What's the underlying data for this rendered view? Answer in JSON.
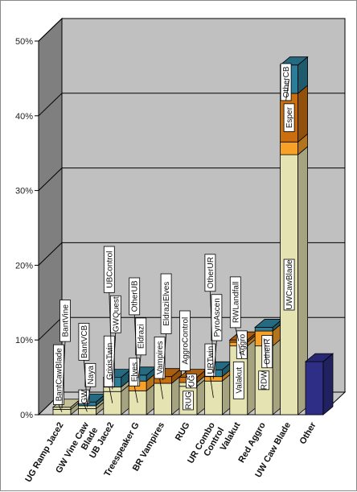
{
  "colors": {
    "wall_back": "#c0c0c0",
    "wall_side": "#7f7f7f",
    "floor": "#c9c9c9",
    "grid": "#000000",
    "seg_cream": "#e6e3b3",
    "seg_orange": "#f7a128",
    "seg_dark_orange": "#c96f10",
    "seg_teal": "#2c7d97",
    "seg_navy": "#2e2e86"
  },
  "chart_data": {
    "type": "bar",
    "stacked": true,
    "view": "3d",
    "title": "",
    "xlabel": "",
    "ylabel": "",
    "ylim": [
      0,
      50
    ],
    "y_ticks": [
      "0%",
      "10%",
      "20%",
      "30%",
      "40%",
      "50%"
    ],
    "grid": true,
    "legend": "none",
    "categories": [
      {
        "label_lines": [
          "UG Ramp Jace2"
        ],
        "segments": [
          {
            "label": "BantCawBlade",
            "value": 0.7,
            "color": "seg_cream"
          },
          {
            "label": "BantVine",
            "value": 0.3,
            "color": "seg_cream"
          }
        ]
      },
      {
        "label_lines": [
          "GW Vine Caw",
          "Blade"
        ],
        "segments": [
          {
            "label": "GW",
            "value": 0.8,
            "color": "seg_cream"
          },
          {
            "label": "Naya",
            "value": 0.4,
            "color": "seg_cream"
          },
          {
            "label": "BantVCB",
            "value": 0.5,
            "color": "seg_teal"
          }
        ]
      },
      {
        "label_lines": [
          "UB Jace2"
        ],
        "segments": [
          {
            "label": "GrixisTwin",
            "value": 3.1,
            "color": "seg_cream"
          },
          {
            "label": "GWQuest",
            "value": 0.6,
            "color": "seg_cream"
          },
          {
            "label": "UBControl",
            "value": 1.3,
            "color": "seg_teal"
          }
        ]
      },
      {
        "label_lines": [
          "Treespeaker G"
        ],
        "segments": [
          {
            "label": "Elves",
            "value": 3.2,
            "color": "seg_cream"
          },
          {
            "label": "Eldrazi",
            "value": 1.3,
            "color": "seg_orange"
          },
          {
            "label": "OtherUB",
            "value": 0.8,
            "color": "seg_teal"
          }
        ]
      },
      {
        "label_lines": [
          "BR Vampires"
        ],
        "segments": [
          {
            "label": "Vampires",
            "value": 4.2,
            "color": "seg_cream"
          },
          {
            "label": "EldraziElves",
            "value": 0.9,
            "color": "seg_dark_orange"
          }
        ]
      },
      {
        "label_lines": [
          "RUG"
        ],
        "segments": [
          {
            "label": "RUG",
            "value": 3.8,
            "color": "seg_cream"
          },
          {
            "label": "UG",
            "value": 0.5,
            "color": "seg_cream"
          },
          {
            "label": "AggroControl",
            "value": 0.7,
            "color": "seg_dark_orange"
          }
        ]
      },
      {
        "label_lines": [
          "UR Combo",
          "Control"
        ],
        "segments": [
          {
            "label": "URTwin",
            "value": 4.5,
            "color": "seg_cream"
          },
          {
            "label": "PyroAscen",
            "value": 0.6,
            "color": "seg_orange"
          },
          {
            "label": "OtherUR",
            "value": 0.9,
            "color": "seg_teal"
          }
        ]
      },
      {
        "label_lines": [
          "Valakut"
        ],
        "segments": [
          {
            "label": "Valakut",
            "value": 9.2,
            "color": "seg_cream"
          },
          {
            "label": "Aggro",
            "value": 0.5,
            "color": "seg_orange"
          },
          {
            "label": "RWLandfall",
            "value": 0.3,
            "color": "seg_dark_orange"
          }
        ]
      },
      {
        "label_lines": [
          "Red Aggro"
        ],
        "segments": [
          {
            "label": "RDW",
            "value": 9.2,
            "color": "seg_cream"
          },
          {
            "label": "OtherR",
            "value": 2.0,
            "color": "seg_orange"
          },
          {
            "label": "",
            "value": 0.5,
            "color": "seg_teal"
          }
        ]
      },
      {
        "label_lines": [
          "UW Caw Blade"
        ],
        "segments": [
          {
            "label": "UWCawBlade",
            "value": 34.8,
            "color": "seg_cream"
          },
          {
            "label": "",
            "value": 1.7,
            "color": "seg_orange"
          },
          {
            "label": "Esper",
            "value": 6.5,
            "color": "seg_dark_orange"
          },
          {
            "label": "OtherCB",
            "value": 3.8,
            "color": "seg_teal"
          }
        ]
      },
      {
        "label_lines": [
          "Other"
        ],
        "segments": [
          {
            "label": "",
            "value": 7.1,
            "color": "seg_navy"
          }
        ]
      }
    ]
  }
}
